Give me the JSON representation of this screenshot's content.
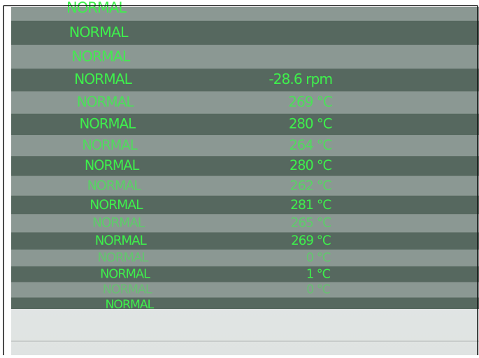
{
  "table": {
    "rows": [
      {
        "status": "NORMAL"
      },
      {
        "status": "NORMAL"
      },
      {
        "status": "NORMAL"
      },
      {
        "status": "NORMAL",
        "value": "-28.6 rpm"
      },
      {
        "status": "NORMAL",
        "value": "269 °C"
      },
      {
        "status": "NORMAL",
        "value": "280 °C"
      },
      {
        "status": "NORMAL",
        "value": "264 °C"
      },
      {
        "status": "NORMAL",
        "value": "280 °C"
      },
      {
        "status": "NORMAL",
        "value": "262 °C"
      },
      {
        "status": "NORMAL",
        "value": "281 °C"
      },
      {
        "status": "NORMAL",
        "value": "265 °C"
      },
      {
        "status": "NORMAL",
        "value": "269 °C"
      },
      {
        "status": "NORMAL",
        "value": "0 °C"
      },
      {
        "status": "NORMAL",
        "value": "1 °C"
      },
      {
        "status": "NORMAL",
        "value": "0 °C"
      },
      {
        "status": "NORMAL"
      }
    ]
  }
}
